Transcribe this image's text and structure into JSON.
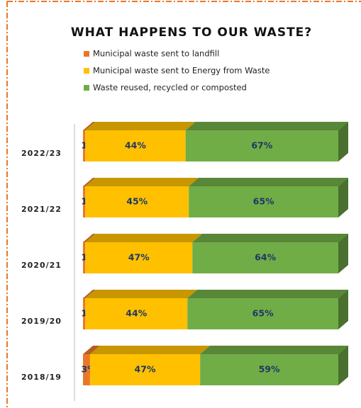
{
  "chart_data": {
    "type": "bar",
    "orientation": "horizontal",
    "stacking": "normalized",
    "title": "WHAT HAPPENS TO OUR WASTE?",
    "categories": [
      "2022/23",
      "2021/22",
      "2020/21",
      "2019/20",
      "2018/19"
    ],
    "series": [
      {
        "name": "Municipal waste sent to landfill",
        "color": "#e9772a",
        "values": [
          1,
          1,
          1,
          1,
          3
        ],
        "value_labels": [
          "1%",
          "1%",
          "1%",
          "1%",
          "3%"
        ]
      },
      {
        "name": "Municipal waste sent to Energy from Waste",
        "color": "#ffc000",
        "values": [
          44,
          45,
          47,
          44,
          47
        ],
        "value_labels": [
          "44%",
          "45%",
          "47%",
          "44%",
          "47%"
        ]
      },
      {
        "name": "Waste reused, recycled or composted",
        "color": "#70ad47",
        "values": [
          67,
          65,
          64,
          65,
          59
        ],
        "value_labels": [
          "67%",
          "65%",
          "64%",
          "65%",
          "59%"
        ]
      }
    ]
  }
}
